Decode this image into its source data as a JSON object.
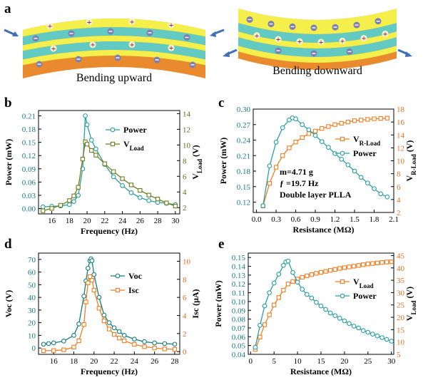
{
  "panel_labels": [
    "a",
    "b",
    "c",
    "d",
    "e"
  ],
  "panel_a": {
    "left_caption": "Bending upward",
    "right_caption": "Bending downward",
    "plus_symbol": "+",
    "colors": {
      "yellow": "#f4ef4a",
      "teal": "#63c9c3",
      "orange": "#e98a2e",
      "arrow": "#3f6fb8",
      "plus": "#8b1a6b",
      "minus": "#7e7fb2"
    }
  },
  "chart_data": [
    {
      "id": "b",
      "type": "line",
      "xlabel": "Frequency (Hz)",
      "ylabel_left": "Power (mW)",
      "ylabel_right_main": "V",
      "ylabel_right_sub": "Load",
      "ylabel_right_unit": "(V)",
      "xlim": [
        14.5,
        30.5
      ],
      "ylim_left": [
        -0.012,
        0.222
      ],
      "ylim_right": [
        1.2,
        14.4
      ],
      "xticks": [
        16,
        18,
        20,
        22,
        24,
        26,
        28,
        30
      ],
      "yticks_left": [
        "0.00",
        "0.03",
        "0.06",
        "0.09",
        "0.12",
        "0.15",
        "0.18",
        "0.21"
      ],
      "yticks_right": [
        2,
        4,
        6,
        8,
        10,
        12,
        14
      ],
      "left_axis_color": "#147c82",
      "right_axis_color": "#5d6e1e",
      "series": [
        {
          "name": "Power",
          "axis": "left",
          "color": "#2a9fa1",
          "marker": "circle",
          "x": [
            15,
            16,
            17,
            18,
            18.5,
            19,
            19.5,
            19.8,
            20,
            20.5,
            21,
            22,
            23,
            24,
            25,
            26,
            27,
            28,
            29,
            30
          ],
          "y": [
            0.004,
            0.005,
            0.006,
            0.009,
            0.016,
            0.03,
            0.09,
            0.21,
            0.19,
            0.155,
            0.135,
            0.1,
            0.072,
            0.052,
            0.036,
            0.025,
            0.018,
            0.014,
            0.012,
            0.009
          ]
        },
        {
          "name": "V",
          "name_sub": "Load",
          "axis": "right",
          "color": "#6e7d1f",
          "marker": "square",
          "x": [
            15,
            16,
            17,
            18,
            18.5,
            19,
            19.5,
            19.8,
            20,
            20.5,
            21,
            22,
            23,
            24,
            25,
            26,
            27,
            28,
            29,
            30
          ],
          "y": [
            1.6,
            1.9,
            2.3,
            2.9,
            3.5,
            4.6,
            8.2,
            10.4,
            10.1,
            9.3,
            8.7,
            7.6,
            6.6,
            5.7,
            4.9,
            4.2,
            3.6,
            3.1,
            2.6,
            2.2
          ]
        }
      ]
    },
    {
      "id": "c",
      "type": "line",
      "xlabel": "Resistance (MΩ)",
      "ylabel_left": "Power (mW)",
      "ylabel_right_main": "V",
      "ylabel_right_sub": "R-Load",
      "ylabel_right_unit": "(V)",
      "xlim": [
        -0.05,
        2.1
      ],
      "ylim_left": [
        0.1,
        0.3
      ],
      "ylim_right": [
        2,
        18
      ],
      "xticks": [
        "0.0",
        "0.3",
        "0.6",
        "0.9",
        "1.2",
        "1.5",
        "1.8",
        "2.1"
      ],
      "yticks_left": [
        "0.12",
        "0.15",
        "0.18",
        "0.21",
        "0.24",
        "0.27",
        "0.30"
      ],
      "yticks_right": [
        2,
        4,
        6,
        8,
        10,
        12,
        14,
        16,
        18
      ],
      "left_axis_color": "#147c82",
      "right_axis_color": "#e06f1c",
      "annotations": [
        "m=4.71 g",
        "ƒ =19.7 Hz",
        "Double layer PLLA"
      ],
      "series": [
        {
          "name": "V",
          "name_sub": "R-Load",
          "axis": "right",
          "color": "#f07d22",
          "marker": "square",
          "x": [
            0.1,
            0.2,
            0.3,
            0.4,
            0.5,
            0.6,
            0.7,
            0.8,
            0.9,
            1.0,
            1.1,
            1.2,
            1.3,
            1.4,
            1.5,
            1.6,
            1.7,
            1.8,
            1.9,
            2.0
          ],
          "y": [
            3.0,
            6.5,
            9.0,
            10.8,
            12.0,
            12.9,
            13.6,
            14.2,
            14.6,
            15.0,
            15.3,
            15.6,
            15.8,
            16.0,
            16.2,
            16.3,
            16.4,
            16.5,
            16.55,
            16.6
          ]
        },
        {
          "name": "Power",
          "axis": "left",
          "color": "#2a9fa1",
          "marker": "circle",
          "x": [
            0.1,
            0.2,
            0.3,
            0.4,
            0.5,
            0.55,
            0.6,
            0.7,
            0.8,
            0.9,
            1.0,
            1.1,
            1.2,
            1.3,
            1.4,
            1.5,
            1.6,
            1.7,
            1.8,
            1.9,
            2.0
          ],
          "y": [
            0.113,
            0.19,
            0.236,
            0.264,
            0.279,
            0.283,
            0.281,
            0.27,
            0.26,
            0.249,
            0.237,
            0.226,
            0.214,
            0.203,
            0.192,
            0.18,
            0.168,
            0.157,
            0.146,
            0.136,
            0.13
          ]
        }
      ]
    },
    {
      "id": "d",
      "type": "line",
      "xlabel": "Frequency (Hz)",
      "ylabel_left": "Voc (V)",
      "ylabel_right": "Isc (μA)",
      "xlim": [
        14.5,
        28.5
      ],
      "ylim_left": [
        -5,
        75
      ],
      "ylim_right": [
        -0.3,
        10.9
      ],
      "xticks": [
        16,
        18,
        20,
        22,
        24,
        26,
        28
      ],
      "yticks_left": [
        0,
        10,
        20,
        30,
        40,
        50,
        60,
        70
      ],
      "yticks_right": [
        0,
        2,
        4,
        6,
        8,
        10
      ],
      "left_axis_color": "#147c82",
      "right_axis_color": "#e06f1c",
      "series": [
        {
          "name": "Voc",
          "axis": "left",
          "color": "#167d7c",
          "marker": "circle",
          "x": [
            15,
            15.5,
            16,
            17,
            18,
            18.5,
            19,
            19.2,
            19.4,
            19.6,
            19.7,
            19.8,
            20,
            20.5,
            21,
            21.5,
            22,
            22.5,
            23,
            24,
            25,
            26,
            27,
            28
          ],
          "y": [
            3,
            3.5,
            4,
            5.5,
            10,
            19,
            41,
            53,
            63,
            69,
            70.5,
            69,
            58,
            40,
            26,
            20,
            16,
            13,
            10,
            7,
            5,
            4,
            3.5,
            3
          ]
        },
        {
          "name": "Isc",
          "axis": "right",
          "color": "#f07d22",
          "marker": "square",
          "x": [
            15,
            16,
            17,
            18,
            18.5,
            19,
            19.2,
            19.4,
            19.6,
            19.8,
            20,
            20.5,
            21,
            21.5,
            22,
            22.5,
            23,
            24,
            25,
            26,
            27,
            28
          ],
          "y": [
            0.1,
            0.12,
            0.2,
            0.5,
            1.2,
            3.0,
            5.5,
            7.6,
            8.3,
            7.9,
            6.8,
            4.8,
            3.4,
            2.5,
            1.9,
            1.5,
            1.2,
            0.8,
            0.55,
            0.4,
            0.3,
            0.25
          ]
        }
      ]
    },
    {
      "id": "e",
      "type": "line",
      "xlabel": "Resistance (MΩ)",
      "ylabel_left": "Power (mW)",
      "ylabel_right_main": "V",
      "ylabel_right_sub": "Load",
      "ylabel_right_unit": "(V)",
      "xlim": [
        -0.5,
        30.5
      ],
      "ylim_left": [
        0.04,
        0.155
      ],
      "ylim_right": [
        5,
        46
      ],
      "xticks": [
        0,
        5,
        10,
        15,
        20,
        25,
        30
      ],
      "yticks_left": [
        "0.04",
        "0.05",
        "0.06",
        "0.07",
        "0.08",
        "0.09",
        "0.10",
        "0.11",
        "0.12",
        "0.13",
        "0.14",
        "0.15"
      ],
      "yticks_right": [
        5,
        10,
        15,
        20,
        25,
        30,
        35,
        40,
        45
      ],
      "left_axis_color": "#147c82",
      "right_axis_color": "#e06f1c",
      "series": [
        {
          "name": "V",
          "name_sub": "Load",
          "axis": "right",
          "color": "#f07d22",
          "marker": "square",
          "x": [
            1,
            2,
            3,
            4,
            5,
            6,
            7,
            8,
            9,
            10,
            11,
            12,
            13,
            14,
            15,
            16,
            17,
            18,
            19,
            20,
            21,
            22,
            23,
            24,
            25,
            26,
            27,
            28,
            29,
            30
          ],
          "y": [
            7,
            12,
            17,
            21,
            25,
            28,
            31,
            33.5,
            34.5,
            35.5,
            36.2,
            36.8,
            37.3,
            37.8,
            38.2,
            38.6,
            39,
            39.4,
            39.8,
            40.1,
            40.4,
            40.7,
            41,
            41.3,
            41.6,
            41.8,
            42,
            42.2,
            42.4,
            42.5
          ]
        },
        {
          "name": "Power",
          "axis": "left",
          "color": "#2a9fa1",
          "marker": "circle",
          "x": [
            1,
            2,
            3,
            4,
            5,
            6,
            7,
            7.5,
            8,
            9,
            10,
            11,
            12,
            13,
            14,
            15,
            16,
            17,
            18,
            19,
            20,
            21,
            22,
            23,
            24,
            25,
            26,
            27,
            28,
            29,
            30
          ],
          "y": [
            0.048,
            0.073,
            0.095,
            0.11,
            0.121,
            0.131,
            0.141,
            0.145,
            0.146,
            0.133,
            0.122,
            0.114,
            0.108,
            0.104,
            0.099,
            0.095,
            0.091,
            0.087,
            0.084,
            0.081,
            0.078,
            0.075,
            0.072,
            0.07,
            0.067,
            0.065,
            0.063,
            0.061,
            0.059,
            0.057,
            0.055
          ]
        }
      ]
    }
  ]
}
